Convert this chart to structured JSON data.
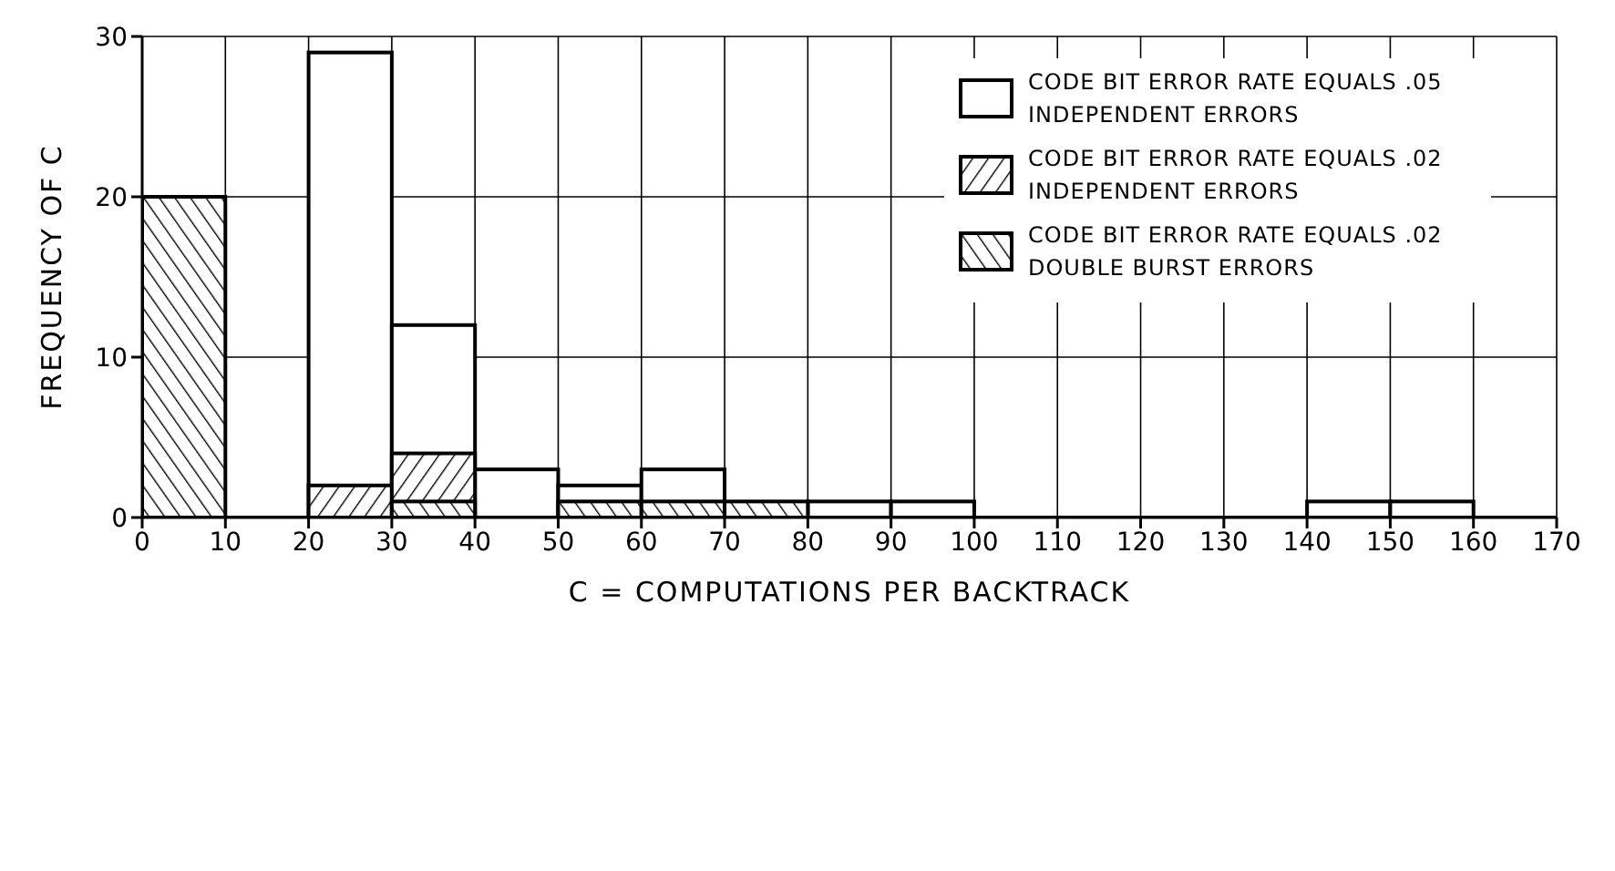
{
  "chart_data": {
    "type": "histogram",
    "xlabel": "C = COMPUTATIONS PER BACKTRACK",
    "ylabel": "FREQUENCY OF C",
    "bins": [
      0,
      10,
      20,
      30,
      40,
      50,
      60,
      70,
      80,
      90,
      100,
      110,
      120,
      130,
      140,
      150,
      160,
      170
    ],
    "series": [
      {
        "name": "CODE BIT ERROR RATE EQUALS .05 INDEPENDENT ERRORS",
        "color": "#000000",
        "values": [
          null,
          0,
          29,
          12,
          3,
          2,
          3,
          null,
          1,
          1,
          0,
          0,
          0,
          0,
          1,
          1,
          0
        ]
      },
      {
        "name": "CODE BIT ERROR RATE EQUALS .02 INDEPENDENT ERRORS",
        "color": "#000000",
        "values": [
          0,
          0,
          2,
          4,
          0,
          0,
          0,
          0,
          0,
          0,
          0,
          0,
          0,
          0,
          0,
          0,
          0
        ]
      },
      {
        "name": "CODE BIT ERROR RATE EQUALS .02 DOUBLE BURST ERRORS",
        "color": "#000000",
        "values": [
          20,
          0,
          0,
          1,
          0,
          1,
          1,
          1,
          0,
          0,
          0,
          0,
          0,
          0,
          0,
          0,
          0
        ]
      }
    ],
    "xlim": [
      0,
      170
    ],
    "xticks": [
      0,
      10,
      20,
      30,
      40,
      50,
      60,
      70,
      80,
      90,
      100,
      110,
      120,
      130,
      140,
      150,
      160,
      170
    ],
    "ylim": [
      0,
      30
    ],
    "yticks": [
      0,
      10,
      20,
      30
    ],
    "grid": true,
    "legend": "top right"
  }
}
